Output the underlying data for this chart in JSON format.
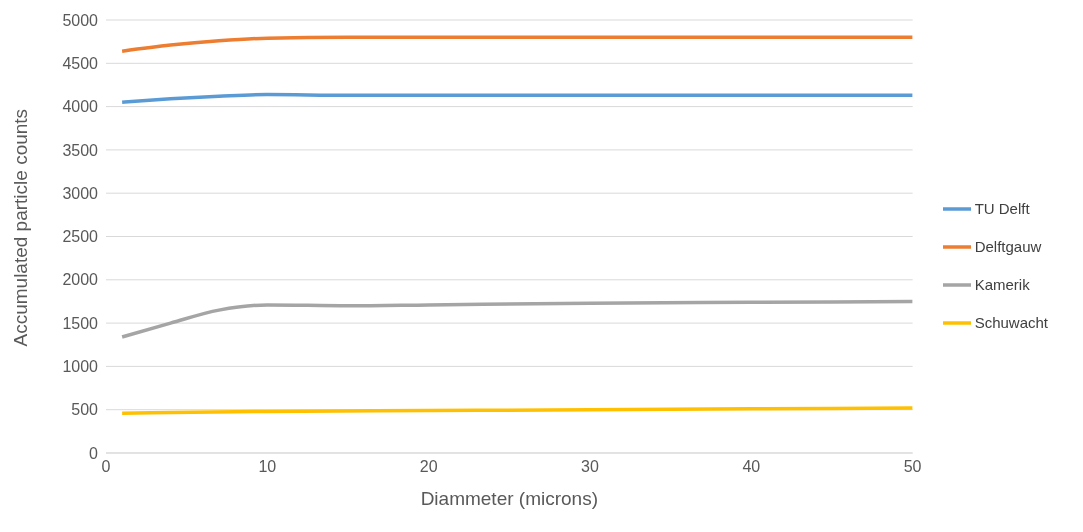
{
  "chart_data": {
    "type": "line",
    "xlabel": "Diammeter (microns)",
    "ylabel": "Accumulated particle counts",
    "xlim": [
      0,
      50
    ],
    "xticks": [
      0,
      10,
      20,
      30,
      40,
      50
    ],
    "ylim": [
      0,
      5000
    ],
    "yticks": [
      0,
      500,
      1000,
      1500,
      2000,
      2500,
      3000,
      3500,
      4000,
      4500,
      5000
    ],
    "grid": "y",
    "legend": "right",
    "marker": "none",
    "line_style": "solid",
    "series": [
      {
        "name": "TU Delft",
        "color": "#5b9bd5",
        "x": [
          1,
          4,
          7,
          10,
          15,
          20,
          30,
          40,
          50
        ],
        "values": [
          4050,
          4090,
          4120,
          4140,
          4130,
          4130,
          4130,
          4130,
          4130
        ]
      },
      {
        "name": "Delftgauw",
        "color": "#ed7d31",
        "x": [
          1,
          4,
          7,
          10,
          15,
          20,
          30,
          40,
          50
        ],
        "values": [
          4640,
          4710,
          4760,
          4790,
          4800,
          4800,
          4800,
          4800,
          4800
        ]
      },
      {
        "name": "Kamerik",
        "color": "#a5a5a5",
        "x": [
          1,
          4,
          7,
          10,
          15,
          20,
          30,
          40,
          50
        ],
        "values": [
          1340,
          1500,
          1650,
          1710,
          1700,
          1710,
          1730,
          1740,
          1750
        ]
      },
      {
        "name": "Schuwacht",
        "color": "#ffc000",
        "x": [
          1,
          10,
          20,
          30,
          40,
          50
        ],
        "values": [
          460,
          480,
          490,
          500,
          510,
          520
        ]
      }
    ]
  }
}
